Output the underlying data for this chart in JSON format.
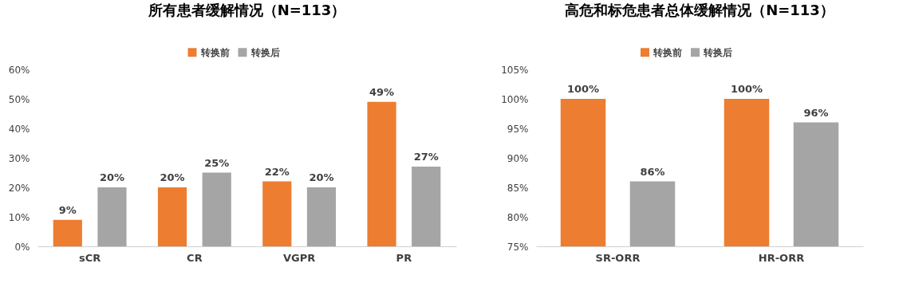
{
  "chart_data": [
    {
      "type": "bar",
      "title": "所有患者缓解情况（N=113）",
      "categories": [
        "sCR",
        "CR",
        "VGPR",
        "PR"
      ],
      "series": [
        {
          "name": "转换前",
          "color": "#ed7d31",
          "values": [
            9,
            20,
            22,
            49
          ],
          "value_labels": [
            "9%",
            "20%",
            "22%",
            "49%"
          ]
        },
        {
          "name": "转换后",
          "color": "#a5a5a5",
          "values": [
            20,
            25,
            20,
            27
          ],
          "value_labels": [
            "20%",
            "25%",
            "20%",
            "27%"
          ]
        }
      ],
      "ylim": [
        0,
        60
      ],
      "yticks": [
        {
          "value": 0,
          "label": "0%"
        },
        {
          "value": 10,
          "label": "10%"
        },
        {
          "value": 20,
          "label": "20%"
        },
        {
          "value": 30,
          "label": "30%"
        },
        {
          "value": 40,
          "label": "40%"
        },
        {
          "value": 50,
          "label": "50%"
        },
        {
          "value": 60,
          "label": "60%"
        }
      ],
      "grid": false,
      "legend": "top"
    },
    {
      "type": "bar",
      "title": "高危和标危患者总体缓解情况（N=113）",
      "categories": [
        "SR-ORR",
        "HR-ORR"
      ],
      "series": [
        {
          "name": "转换前",
          "color": "#ed7d31",
          "values": [
            100,
            100
          ],
          "value_labels": [
            "100%",
            "100%"
          ]
        },
        {
          "name": "转换后",
          "color": "#a5a5a5",
          "values": [
            86,
            96
          ],
          "value_labels": [
            "86%",
            "96%"
          ]
        }
      ],
      "ylim": [
        75,
        105
      ],
      "yticks": [
        {
          "value": 75,
          "label": "75%"
        },
        {
          "value": 80,
          "label": "80%"
        },
        {
          "value": 85,
          "label": "85%"
        },
        {
          "value": 90,
          "label": "90%"
        },
        {
          "value": 95,
          "label": "95%"
        },
        {
          "value": 100,
          "label": "100%"
        },
        {
          "value": 105,
          "label": "105%"
        }
      ],
      "grid": false,
      "legend": "top"
    }
  ]
}
